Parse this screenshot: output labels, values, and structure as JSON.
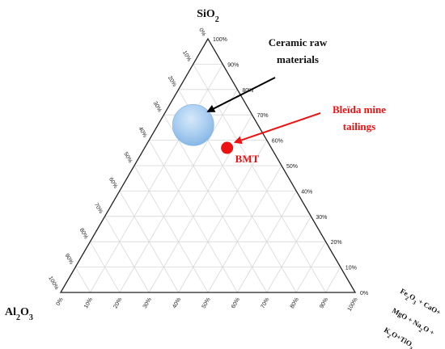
{
  "chart_data": {
    "type": "ternary",
    "vertices": {
      "top": {
        "label": "SiO",
        "sub": "2"
      },
      "left": {
        "label": "Al",
        "sub1": "2",
        "mid": "O",
        "sub2": "3"
      },
      "right": {
        "lines": [
          {
            "parts": [
              [
                "Fe",
                ""
              ],
              [
                "2",
                "s"
              ],
              [
                "O",
                ""
              ],
              [
                "3",
                "s"
              ],
              [
                " + CaO+",
                ""
              ]
            ]
          },
          {
            "parts": [
              [
                "MgO + Na",
                ""
              ],
              [
                "2",
                "s"
              ],
              [
                "O +",
                ""
              ]
            ]
          },
          {
            "parts": [
              [
                "K",
                ""
              ],
              [
                "2",
                "s"
              ],
              [
                "O+TiO",
                ""
              ],
              [
                "2",
                "s"
              ]
            ]
          }
        ]
      }
    },
    "ticks": [
      "0%",
      "10%",
      "20%",
      "30%",
      "40%",
      "50%",
      "60%",
      "70%",
      "80%",
      "90%",
      "100%"
    ],
    "grid": true,
    "series": [
      {
        "name": "Ceramic raw materials",
        "type": "region",
        "center": {
          "sio2": 66,
          "al2o3": 22,
          "other": 12
        },
        "radius": 7,
        "color": "#a9cdf0"
      },
      {
        "name": "Bleïda mine tailings",
        "short_label": "BMT",
        "type": "point",
        "value": {
          "sio2": 57,
          "al2o3": 15,
          "other": 28
        },
        "color": "#ee1111"
      }
    ],
    "annotations": {
      "ceramic": {
        "line1": "Ceramic raw",
        "line2": "materials"
      },
      "bleida": {
        "line1": "Bleïda mine",
        "line2": "tailings"
      },
      "bmt": "BMT"
    },
    "colors": {
      "ceramic_text": "#111111",
      "bleida_text": "#ee1111",
      "grid": "#d8d8d8",
      "axis": "#222222"
    }
  }
}
